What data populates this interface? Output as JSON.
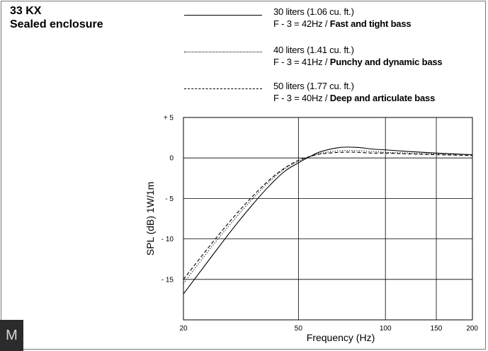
{
  "title": {
    "line1": "33 KX",
    "line2": "Sealed enclosure"
  },
  "brand_mark": "M",
  "legend": [
    {
      "label": "30 liters (1.06 cu. ft.)",
      "fprefix": "F - 3 = 42Hz / ",
      "fdesc": "Fast and tight bass",
      "style": "solid"
    },
    {
      "label": "40 liters (1.41 cu. ft.)",
      "fprefix": "F - 3 = 41Hz / ",
      "fdesc": "Punchy and dynamic bass",
      "style": "dotted"
    },
    {
      "label": "50 liters (1.77 cu. ft.)",
      "fprefix": "F - 3 = 40Hz / ",
      "fdesc": "Deep and articulate bass",
      "style": "dashed"
    }
  ],
  "chart_data": {
    "type": "line",
    "xlabel": "Frequency (Hz)",
    "ylabel": "SPL (dB) 1W/1m",
    "xscale": "log",
    "xlim": [
      20,
      200
    ],
    "ylim": [
      -20,
      5
    ],
    "xticks": [
      20,
      50,
      100,
      150,
      200
    ],
    "xtick_labels": [
      "20",
      "50",
      "100",
      "150",
      "200"
    ],
    "yticks": [
      5,
      0,
      -5,
      -10,
      -15
    ],
    "ytick_labels": [
      "+ 5",
      "0",
      "- 5",
      "- 10",
      "- 15"
    ],
    "grid": true,
    "series": [
      {
        "name": "30 liters (1.06 cu. ft.)",
        "style": "solid",
        "x": [
          20,
          25,
          30,
          35,
          40,
          45,
          50,
          55,
          60,
          70,
          80,
          90,
          100,
          120,
          150,
          200
        ],
        "y": [
          -16.8,
          -12.2,
          -8.5,
          -5.6,
          -3.3,
          -1.6,
          -0.6,
          0.2,
          0.8,
          1.3,
          1.3,
          1.1,
          1.0,
          0.8,
          0.6,
          0.4
        ]
      },
      {
        "name": "40 liters (1.41 cu. ft.)",
        "style": "dotted",
        "x": [
          20,
          25,
          30,
          35,
          40,
          45,
          50,
          55,
          60,
          70,
          80,
          90,
          100,
          120,
          150,
          200
        ],
        "y": [
          -15.5,
          -11.0,
          -7.6,
          -4.9,
          -2.8,
          -1.3,
          -0.4,
          0.2,
          0.6,
          0.9,
          0.9,
          0.8,
          0.7,
          0.6,
          0.5,
          0.4
        ]
      },
      {
        "name": "50 liters (1.77 cu. ft.)",
        "style": "dashed",
        "x": [
          20,
          25,
          30,
          35,
          40,
          45,
          50,
          55,
          60,
          70,
          80,
          90,
          100,
          120,
          150,
          200
        ],
        "y": [
          -15.0,
          -10.6,
          -7.2,
          -4.6,
          -2.6,
          -1.2,
          -0.3,
          0.2,
          0.5,
          0.7,
          0.7,
          0.6,
          0.6,
          0.5,
          0.4,
          0.3
        ]
      }
    ]
  }
}
